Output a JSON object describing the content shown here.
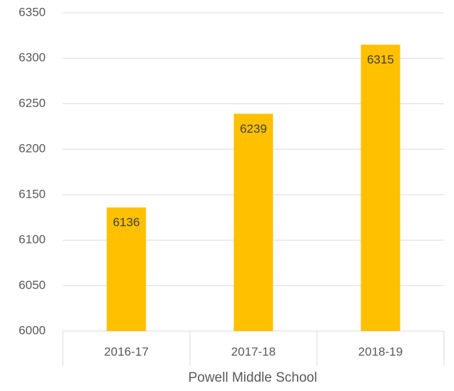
{
  "chart_data": {
    "type": "bar",
    "xlabel": "Powell Middle School",
    "categories": [
      "2016-17",
      "2017-18",
      "2018-19"
    ],
    "values": [
      6136,
      6239,
      6315
    ],
    "color": "#ffc000",
    "ylim": [
      6000,
      6350
    ],
    "yticks": [
      6000,
      6050,
      6100,
      6150,
      6200,
      6250,
      6300,
      6350
    ],
    "grid": true
  }
}
